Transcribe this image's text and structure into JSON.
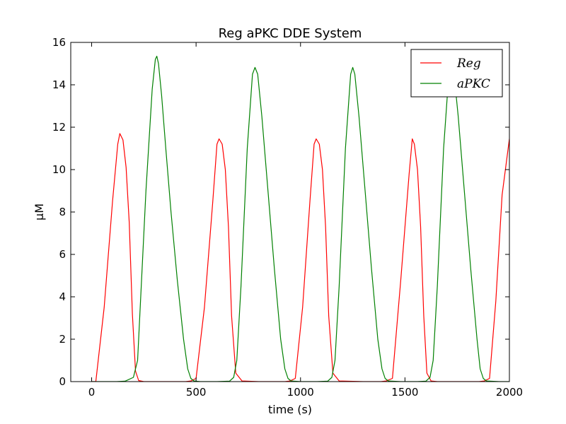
{
  "chart_data": {
    "type": "line",
    "title": "Reg aPKC DDE System",
    "xlabel": "time (s)",
    "ylabel": "μM",
    "xlim": [
      -100,
      2000
    ],
    "ylim": [
      0,
      16
    ],
    "xticks": [
      0,
      500,
      1000,
      1500,
      2000
    ],
    "yticks": [
      0,
      2,
      4,
      6,
      8,
      10,
      12,
      14,
      16
    ],
    "grid": false,
    "legend_position": "top-right",
    "series": [
      {
        "name": "Reg",
        "color": "#ff0000",
        "x": [
          0,
          20,
          60,
          100,
          125,
          135,
          150,
          165,
          180,
          195,
          210,
          225,
          250,
          300,
          400,
          450,
          475,
          500,
          540,
          580,
          600,
          610,
          625,
          640,
          655,
          670,
          690,
          720,
          800,
          900,
          925,
          950,
          975,
          1010,
          1045,
          1065,
          1075,
          1090,
          1105,
          1120,
          1135,
          1155,
          1185,
          1300,
          1385,
          1410,
          1440,
          1480,
          1520,
          1535,
          1545,
          1560,
          1575,
          1590,
          1605,
          1625,
          1655,
          1750,
          1855,
          1880,
          1905,
          1935,
          1965,
          2000
        ],
        "y": [
          0,
          0,
          3.5,
          8.5,
          11.2,
          11.7,
          11.4,
          10.1,
          7.5,
          3.2,
          0.5,
          0.05,
          0,
          0,
          0,
          0,
          0.03,
          0.15,
          3.5,
          8.5,
          11.2,
          11.45,
          11.2,
          10.0,
          7.3,
          3.1,
          0.4,
          0.03,
          0,
          0,
          0,
          0.03,
          0.15,
          3.5,
          8.5,
          11.2,
          11.45,
          11.2,
          10.0,
          7.3,
          3.1,
          0.4,
          0.03,
          0,
          0,
          0.03,
          0.15,
          4.8,
          9.8,
          11.45,
          11.2,
          10.0,
          7.3,
          3.1,
          0.4,
          0.03,
          0,
          0,
          0,
          0.03,
          0.15,
          3.8,
          8.8,
          11.45
        ]
      },
      {
        "name": "aPKC",
        "color": "#008000",
        "x": [
          0,
          120,
          160,
          200,
          220,
          230,
          260,
          290,
          305,
          312,
          320,
          335,
          355,
          380,
          410,
          440,
          460,
          475,
          490,
          520,
          600,
          660,
          680,
          695,
          715,
          745,
          770,
          782,
          795,
          815,
          845,
          875,
          905,
          925,
          940,
          955,
          1000,
          1080,
          1130,
          1150,
          1165,
          1185,
          1215,
          1240,
          1250,
          1260,
          1280,
          1310,
          1340,
          1370,
          1390,
          1405,
          1420,
          1480,
          1560,
          1600,
          1620,
          1635,
          1655,
          1685,
          1710,
          1720,
          1735,
          1755,
          1785,
          1815,
          1845,
          1860,
          1875,
          1890,
          1950,
          2000
        ],
        "y": [
          0,
          0,
          0.02,
          0.2,
          1.0,
          3.0,
          9.0,
          13.8,
          15.2,
          15.35,
          15.0,
          13.5,
          11.0,
          8.0,
          4.8,
          2.0,
          0.6,
          0.15,
          0.03,
          0,
          0,
          0.02,
          0.2,
          1.0,
          4.5,
          11.0,
          14.5,
          14.82,
          14.5,
          12.5,
          8.9,
          5.3,
          2.0,
          0.6,
          0.15,
          0.03,
          0,
          0,
          0.02,
          0.2,
          1.0,
          4.5,
          11.0,
          14.5,
          14.82,
          14.5,
          12.5,
          8.9,
          5.3,
          2.0,
          0.6,
          0.15,
          0.03,
          0,
          0,
          0.02,
          0.2,
          1.0,
          4.5,
          11.0,
          14.5,
          14.82,
          14.5,
          12.5,
          8.9,
          5.3,
          2.0,
          0.6,
          0.15,
          0.03,
          0,
          0
        ]
      }
    ]
  }
}
